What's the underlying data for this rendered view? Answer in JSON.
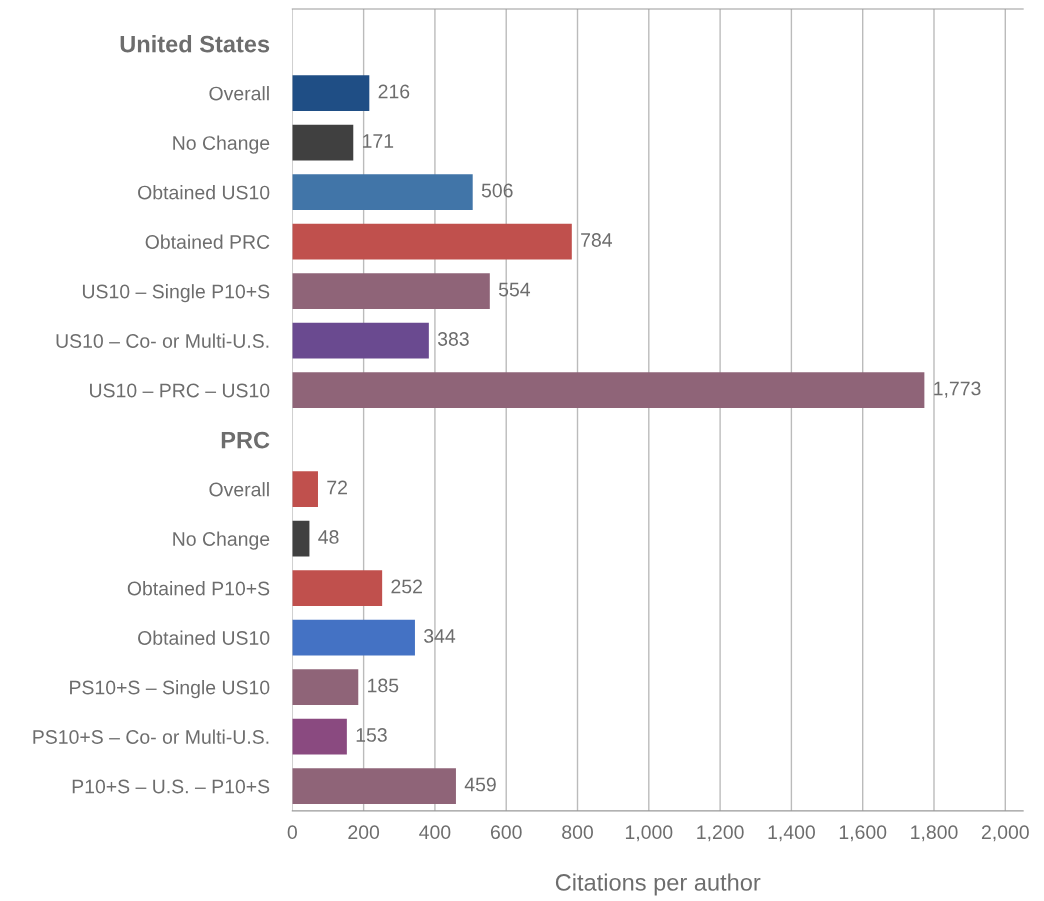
{
  "chart_data": {
    "type": "bar",
    "orientation": "horizontal",
    "xlabel": "Citations per author",
    "categories": [
      "United States",
      "Overall",
      "No Change",
      "Obtained US10",
      "Obtained PRC",
      "US10 – Single P10+S",
      "US10 – Co- or Multi-U.S.",
      "US10 – PRC – US10",
      "PRC",
      "Overall",
      "No Change",
      "Obtained P10+S",
      "Obtained US10",
      "PS10+S – Single US10",
      "PS10+S – Co- or Multi-U.S.",
      "P10+S – U.S. – P10+S"
    ],
    "values": [
      null,
      216,
      171,
      506,
      784,
      554,
      383,
      1773,
      null,
      72,
      48,
      252,
      344,
      185,
      153,
      459
    ],
    "value_labels": [
      null,
      "216",
      "171",
      "506",
      "784",
      "554",
      "383",
      "1,773",
      null,
      "72",
      "48",
      "252",
      "344",
      "185",
      "153",
      "459"
    ],
    "colors": [
      "#000000",
      "#1f4e85",
      "#404040",
      "#4175a8",
      "#c0504d",
      "#8f6478",
      "#6a4a90",
      "#8f6478",
      "#000000",
      "#c0504d",
      "#404040",
      "#c0504d",
      "#4472c4",
      "#8f6478",
      "#8a4a80",
      "#8f6478"
    ],
    "xlim": [
      0,
      2050
    ],
    "xticks": [
      0,
      200,
      400,
      600,
      800,
      {
        "value": 1000,
        "label": "1,000"
      },
      {
        "value": 1200,
        "label": "1,200"
      },
      {
        "value": 1400,
        "label": "1,400"
      },
      {
        "value": 1600,
        "label": "1,600"
      },
      {
        "value": 1800,
        "label": "1,800"
      },
      {
        "value": 2000,
        "label": "2,000"
      }
    ],
    "grid": "x"
  }
}
